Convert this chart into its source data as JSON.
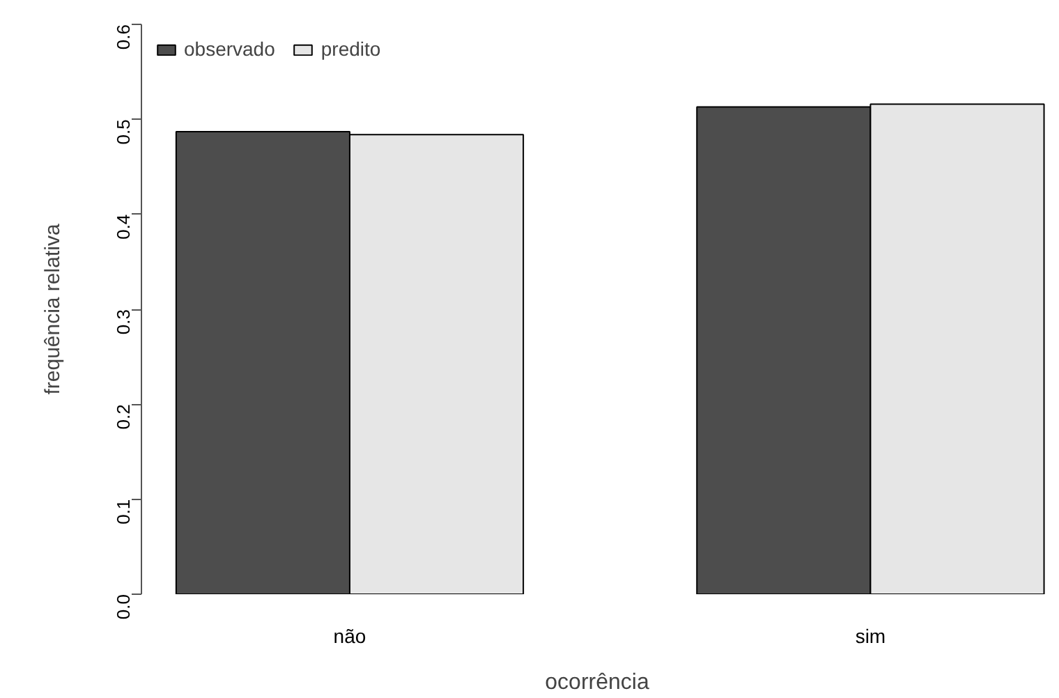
{
  "chart_data": {
    "type": "bar",
    "xlabel": "ocorrência",
    "ylabel": "frequência relativa",
    "categories": [
      "não",
      "sim"
    ],
    "series": [
      {
        "name": "observado",
        "color": "#4d4d4d",
        "values": [
          0.487,
          0.513
        ]
      },
      {
        "name": "predito",
        "color": "#e6e6e6",
        "values": [
          0.484,
          0.516
        ]
      }
    ],
    "ylim": [
      0,
      0.6
    ],
    "yticks": [
      {
        "value": 0,
        "label": "0.0"
      },
      0.1,
      0.2,
      0.3,
      0.4,
      0.5,
      0.6
    ],
    "legend": "top left"
  }
}
